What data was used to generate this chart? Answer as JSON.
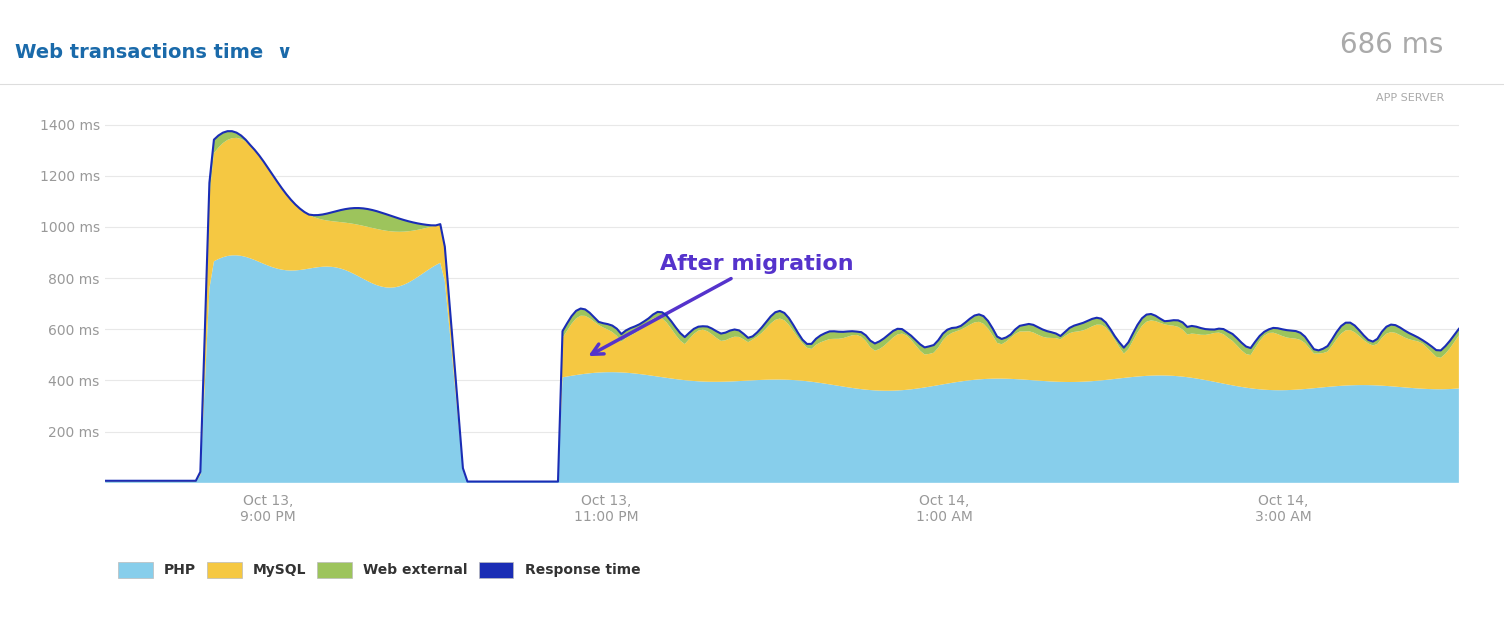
{
  "title": "Web transactions time  ∨",
  "badge_text": "686 ms",
  "badge_sub": "APP SERVER",
  "ylabel_ticks": [
    "200 ms",
    "400 ms",
    "600 ms",
    "800 ms",
    "1000 ms",
    "1200 ms",
    "1400 ms"
  ],
  "ytick_vals": [
    200,
    400,
    600,
    800,
    1000,
    1200,
    1400
  ],
  "xtick_labels": [
    "Oct 13,\n9:00 PM",
    "Oct 13,\n11:00 PM",
    "Oct 14,\n1:00 AM",
    "Oct 14,\n3:00 AM"
  ],
  "xtick_positions": [
    0.12,
    0.37,
    0.62,
    0.87
  ],
  "annotation_text": "After migration",
  "annotation_color": "#5533cc",
  "arrow_color": "#5533cc",
  "background_color": "#ffffff",
  "php_color": "#87CEEB",
  "mysql_color": "#F5C842",
  "web_external_color": "#9DC45C",
  "response_line_color": "#1a2db5",
  "legend": [
    "PHP",
    "MySQL",
    "Web external",
    "Response time"
  ],
  "legend_colors": [
    "#87CEEB",
    "#F5C842",
    "#9DC45C",
    "#1a2db5"
  ]
}
